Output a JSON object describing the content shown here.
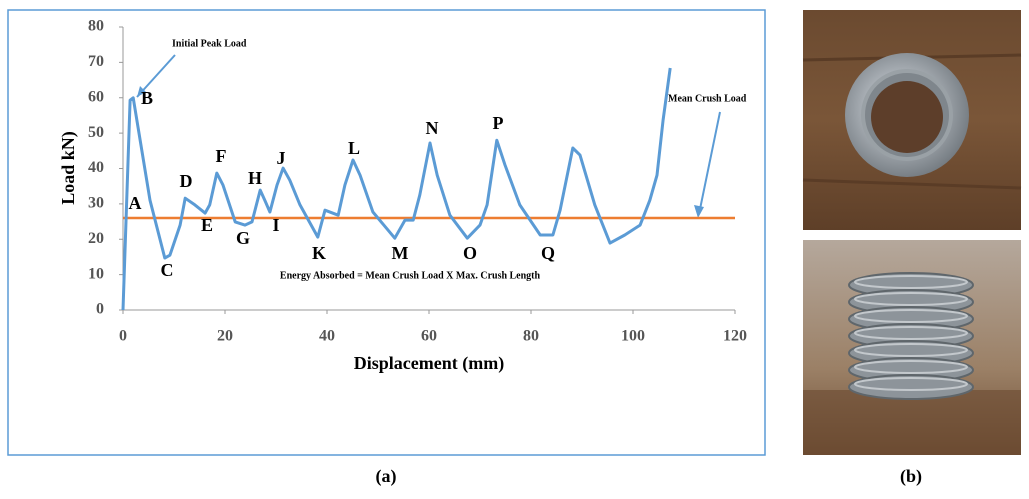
{
  "chart_data": {
    "type": "line",
    "y_label": "Load kN)",
    "x_label": "Displacement (mm)",
    "x": [
      0,
      1.4,
      2,
      5.3,
      8.2,
      9.2,
      11.2,
      12.2,
      14.1,
      16.1,
      17,
      18.4,
      19.6,
      22,
      23.9,
      25.3,
      26.9,
      27.8,
      28.8,
      30.2,
      31.4,
      32.7,
      34.7,
      38.2,
      39.6,
      42.2,
      43.5,
      45.1,
      46.5,
      49,
      53.3,
      55.3,
      56.9,
      58.2,
      60.2,
      61.6,
      64.1,
      67.5,
      70,
      71.4,
      73.3,
      74.9,
      77.8,
      81.8,
      84.3,
      85.7,
      88.2,
      89.6,
      92.5,
      95.5,
      98.4,
      101.4,
      103.3,
      104.7,
      105.9,
      107.3
    ],
    "values": [
      0,
      59.3,
      60,
      31,
      14.7,
      15.5,
      24,
      31.6,
      29.7,
      27.4,
      29.7,
      38.7,
      35.3,
      24.9,
      24,
      24.9,
      33.9,
      31,
      27.7,
      35.3,
      40.1,
      36.7,
      29.7,
      20.6,
      28.2,
      26.8,
      35.3,
      42.4,
      38.1,
      27.7,
      20.3,
      25.4,
      25.4,
      32.5,
      47.2,
      38.1,
      26.8,
      20.3,
      24,
      29.7,
      48,
      41,
      29.7,
      21.2,
      21.2,
      28.2,
      45.8,
      43.8,
      29.7,
      18.9,
      21.2,
      24,
      31,
      38.1,
      53.7,
      68.4
    ],
    "color": "#5b9bd5",
    "mean_crush_load": 26,
    "mean_color": "#ed7d31",
    "xlim": [
      0,
      120
    ],
    "xticks": [
      0,
      20,
      40,
      60,
      80,
      100,
      120
    ],
    "ylim": [
      0,
      80
    ],
    "yticks": [
      0,
      10,
      20,
      30,
      40,
      50,
      60,
      70,
      80
    ],
    "points": [
      "A",
      "B",
      "C",
      "D",
      "E",
      "F",
      "G",
      "H",
      "I",
      "J",
      "K",
      "L",
      "M",
      "N",
      "O",
      "P",
      "Q"
    ],
    "annotations": [
      "Initial Peak Load",
      "Mean Crush Load",
      "Energy Absorbed = Mean Crush Load X Max. Crush Length"
    ]
  },
  "captions": [
    "(a)",
    "(b)"
  ]
}
